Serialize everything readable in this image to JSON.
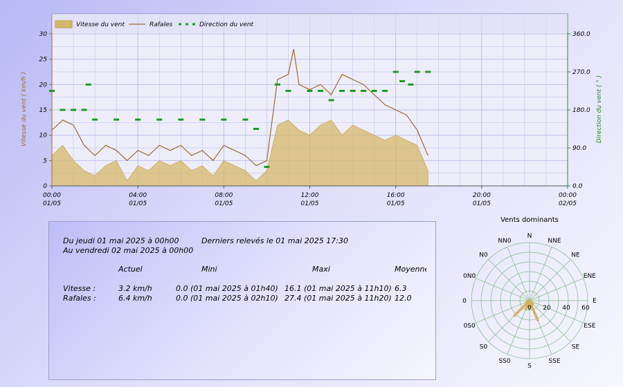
{
  "chart_data": {
    "type": "line",
    "legend": [
      {
        "name": "Vitesse du vent",
        "color": "#d6b86a"
      },
      {
        "name": "Rafales",
        "color": "#9a6a2a"
      },
      {
        "name": "Direction du vent",
        "color": "#1a9a1a"
      }
    ],
    "ylabel_left": "Vitesse du vent ( km/h )",
    "ylabel_right": "Direction du vent ( ° )",
    "y_left_ticks": [
      "0",
      "5",
      "10",
      "15",
      "20",
      "25",
      "30"
    ],
    "y_right_ticks": [
      "0.0",
      "90.0",
      "180.0",
      "270.0",
      "360.0"
    ],
    "x_ticks": [
      {
        "time": "00:00",
        "date": "01/05"
      },
      {
        "time": "04:00",
        "date": "01/05"
      },
      {
        "time": "08:00",
        "date": "01/05"
      },
      {
        "time": "12:00",
        "date": "01/05"
      },
      {
        "time": "16:00",
        "date": "01/05"
      },
      {
        "time": "20:00",
        "date": "01/05"
      },
      {
        "time": "00:00",
        "date": "02/05"
      }
    ],
    "ylim_left": [
      0,
      30
    ],
    "ylim_right": [
      0,
      360
    ],
    "xlim_hours": [
      0,
      24
    ],
    "grid": true,
    "legend_position": "top-left",
    "series": [
      {
        "name": "Vitesse du vent",
        "type": "area",
        "x_hours": [
          0,
          0.5,
          1,
          1.5,
          2,
          2.5,
          3,
          3.5,
          4,
          4.5,
          5,
          5.5,
          6,
          6.5,
          7,
          7.5,
          8,
          8.5,
          9,
          9.5,
          10,
          10.5,
          11,
          11.5,
          12,
          12.5,
          13,
          13.5,
          14,
          14.5,
          15,
          15.5,
          16,
          16.5,
          17,
          17.5
        ],
        "values": [
          6,
          8,
          5,
          3,
          2,
          4,
          5,
          1,
          4,
          3,
          5,
          4,
          5,
          3,
          4,
          2,
          5,
          4,
          3,
          1,
          3,
          12,
          13,
          11,
          10,
          12,
          13,
          10,
          12,
          11,
          10,
          9,
          10,
          9,
          8,
          3
        ]
      },
      {
        "name": "Rafales",
        "type": "line",
        "x_hours": [
          0,
          0.5,
          1,
          1.5,
          2,
          2.5,
          3,
          3.5,
          4,
          4.5,
          5,
          5.5,
          6,
          6.5,
          7,
          7.5,
          8,
          8.5,
          9,
          9.5,
          10,
          10.5,
          11,
          11.25,
          11.5,
          12,
          12.5,
          13,
          13.5,
          14,
          14.5,
          15,
          15.5,
          16,
          16.5,
          17,
          17.5
        ],
        "values": [
          11,
          13,
          12,
          8,
          6,
          8,
          7,
          5,
          7,
          6,
          8,
          7,
          8,
          6,
          7,
          5,
          8,
          7,
          6,
          4,
          5,
          21,
          22,
          27,
          20,
          19,
          20,
          18,
          22,
          21,
          20,
          18,
          16,
          15,
          14,
          11,
          6
        ]
      },
      {
        "name": "Direction du vent",
        "type": "scatter",
        "x_hours": [
          0,
          0.5,
          1,
          1.5,
          1.7,
          2,
          3,
          4,
          5,
          6,
          7,
          8,
          9,
          9.5,
          10,
          10.5,
          11,
          12,
          12.5,
          13,
          13.5,
          14,
          14.5,
          15,
          15.5,
          16,
          16.3,
          16.7,
          17,
          17.5
        ],
        "values": [
          225,
          180,
          180,
          180,
          240,
          157,
          157,
          157,
          157,
          157,
          157,
          157,
          157,
          135,
          45,
          240,
          225,
          225,
          225,
          203,
          225,
          225,
          225,
          225,
          225,
          270,
          248,
          240,
          270,
          270
        ]
      }
    ]
  },
  "panel": {
    "period_from": "Du jeudi 01 mai 2025 à 00h00",
    "period_to": "Au vendredi 02 mai 2025 à 00h00",
    "last_reading": "Derniers relevés le 01 mai 2025 17:30",
    "col_actual": "Actuel",
    "col_min": "Mini",
    "col_max": "Maxi",
    "col_avg": "Moyenne",
    "rows": [
      {
        "label": "Vitesse :",
        "actual": "3.2 km/h",
        "min": "0.0 (01 mai 2025 à 01h40)",
        "max": "16.1 (01 mai 2025 à 11h10)",
        "avg": "6.3"
      },
      {
        "label": "Rafales :",
        "actual": "6.4 km/h",
        "min": "0.0 (01 mai 2025 à 02h10)",
        "max": "27.4 (01 mai 2025 à 11h20)",
        "avg": "12.0"
      }
    ]
  },
  "rose": {
    "title": "Vents dominants",
    "directions": [
      "N",
      "NNE",
      "NE",
      "ENE",
      "E",
      "ESE",
      "SE",
      "SSE",
      "S",
      "SS0",
      "S0",
      "0S0",
      "0",
      "0N0",
      "N0",
      "NN0"
    ],
    "radial_ticks": [
      "20",
      "40",
      "60"
    ],
    "rmax": 60,
    "frequencies": [
      0,
      0,
      0,
      0,
      0,
      0,
      5,
      22,
      8,
      10,
      22,
      3,
      0,
      0,
      0,
      0
    ],
    "color": "#d4b060"
  }
}
